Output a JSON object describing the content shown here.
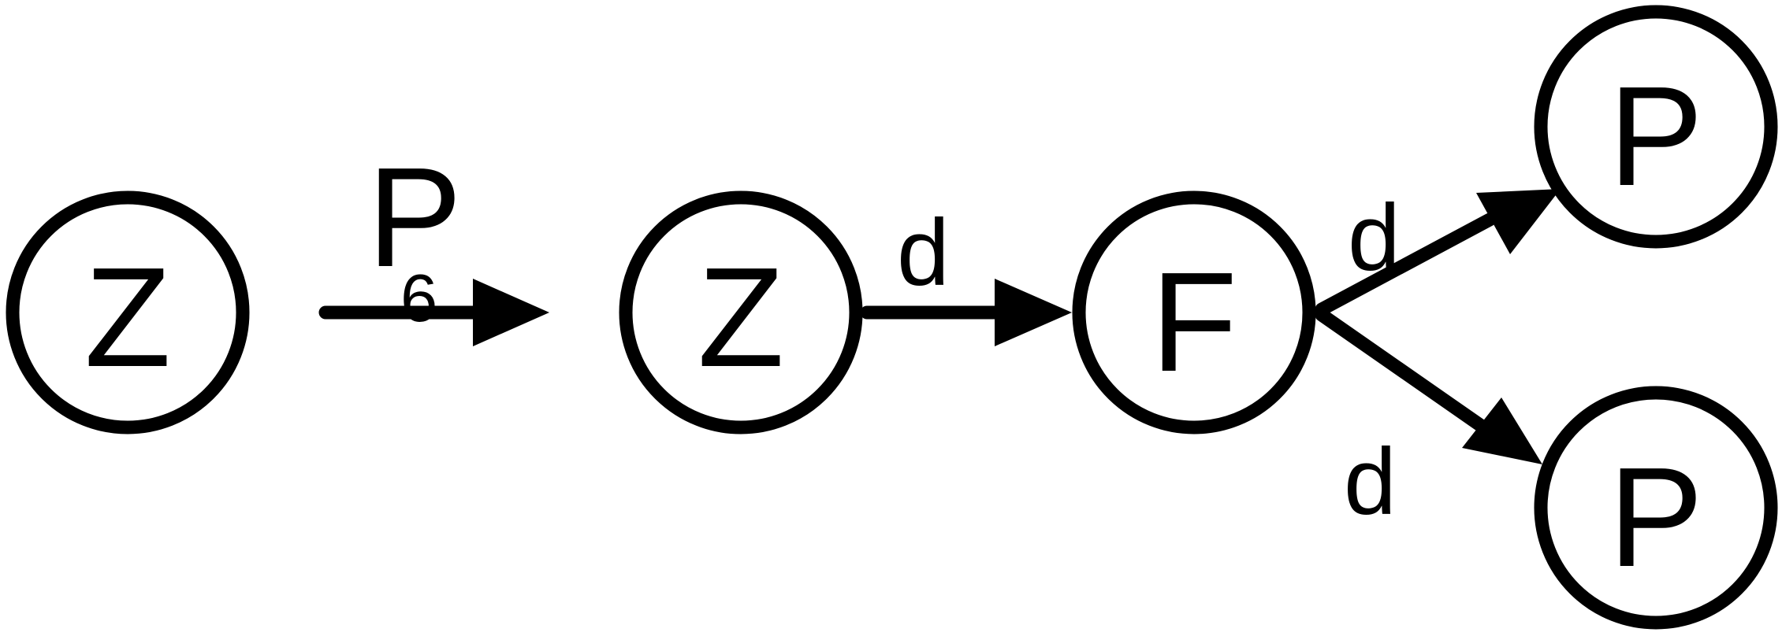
{
  "nodes": [
    {
      "id": "z1",
      "label": "Z"
    },
    {
      "id": "z2",
      "label": "Z"
    },
    {
      "id": "f",
      "label": "F"
    },
    {
      "id": "p1",
      "label": "P"
    },
    {
      "id": "p2",
      "label": "P"
    }
  ],
  "edges": [
    {
      "id": "e1",
      "from": "z1",
      "to": "z2",
      "label": "P",
      "sublabel": "6"
    },
    {
      "id": "e2",
      "from": "z2",
      "to": "f",
      "label": "d"
    },
    {
      "id": "e3",
      "from": "f",
      "to": "p1",
      "label": "d"
    },
    {
      "id": "e4",
      "from": "f",
      "to": "p2",
      "label": "d"
    }
  ],
  "colors": {
    "stroke": "#000000",
    "fill": "#ffffff"
  }
}
